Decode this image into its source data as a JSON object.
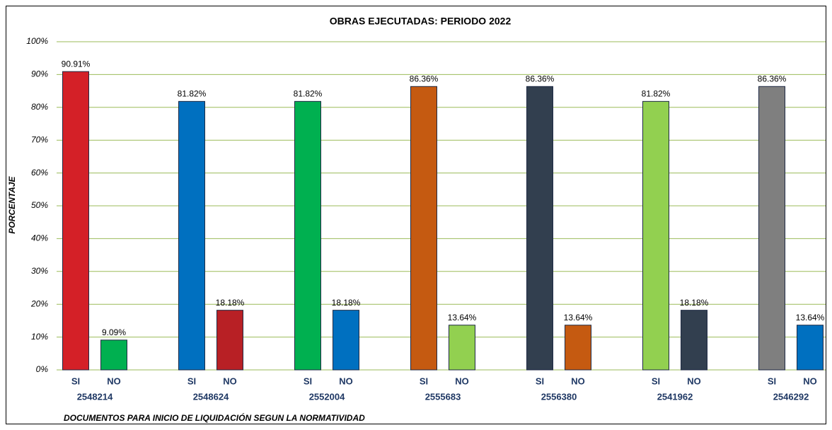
{
  "chart_data": {
    "type": "bar",
    "title": "OBRAS EJECUTADAS: PERIODO 2022",
    "y_label": "PORCENTAJE",
    "x_label": "DOCUMENTOS PARA INICIO DE LIQUIDACIÓN SEGUN LA NORMATIVIDAD",
    "categories": [
      "2548214",
      "2548624",
      "2552004",
      "2555683",
      "2556380",
      "2541962",
      "2546292"
    ],
    "series": [
      {
        "name": "SI",
        "values": [
          90.91,
          81.82,
          81.82,
          86.36,
          86.36,
          81.82,
          86.36
        ],
        "value_labels": [
          "90.91%",
          "81.82%",
          "81.82%",
          "86.36%",
          "86.36%",
          "81.82%",
          "86.36%"
        ],
        "colors": [
          "#d42027",
          "#0070c0",
          "#00b050",
          "#c55a11",
          "#323f4f",
          "#92d050",
          "#7f7f7f"
        ]
      },
      {
        "name": "NO",
        "values": [
          9.09,
          18.18,
          18.18,
          13.64,
          13.64,
          18.18,
          13.64
        ],
        "value_labels": [
          "9.09%",
          "18.18%",
          "18.18%",
          "13.64%",
          "13.64%",
          "18.18%",
          "13.64%"
        ],
        "colors": [
          "#00b050",
          "#b82025",
          "#0070c0",
          "#92d050",
          "#c55a11",
          "#323f4f",
          "#0070c0"
        ]
      }
    ],
    "ylim": [
      0,
      100
    ],
    "yticks": [
      {
        "value": 0,
        "label": "0%"
      },
      {
        "value": 10,
        "label": "10%"
      },
      {
        "value": 20,
        "label": "20%"
      },
      {
        "value": 30,
        "label": "30%"
      },
      {
        "value": 40,
        "label": "40%"
      },
      {
        "value": 50,
        "label": "50%"
      },
      {
        "value": 60,
        "label": "60%"
      },
      {
        "value": 70,
        "label": "70%"
      },
      {
        "value": 80,
        "label": "80%"
      },
      {
        "value": 90,
        "label": "90%"
      },
      {
        "value": 100,
        "label": "100%"
      }
    ],
    "grid": true,
    "grid_color": "#9bbb59"
  }
}
